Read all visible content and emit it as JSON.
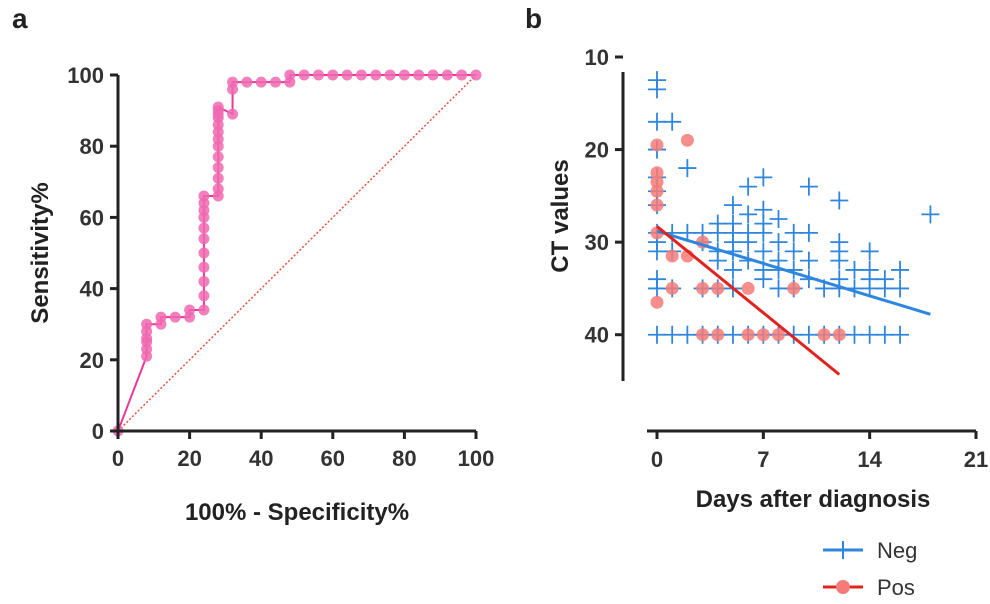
{
  "colors": {
    "roc": "#e8389a",
    "roc_fill": "#f06ab0",
    "diagonal": "#e8503c",
    "neg": "#2e86de",
    "pos": "#e0231c",
    "pos_fill": "#f47b78",
    "axis": "#222222"
  },
  "chart_data": [
    {
      "panel": "a",
      "type": "line",
      "xlabel": "100% - Specificity%",
      "ylabel": "Sensitivity%",
      "xlim": [
        0,
        100
      ],
      "ylim": [
        0,
        100
      ],
      "xticks": [
        0,
        20,
        40,
        60,
        80,
        100
      ],
      "yticks": [
        0,
        20,
        40,
        60,
        80,
        100
      ],
      "grid": false,
      "reference_line": {
        "x": [
          0,
          100
        ],
        "y": [
          0,
          100
        ],
        "style": "dotted"
      },
      "series": [
        {
          "marker": "circle",
          "x": [
            0,
            8,
            8,
            8,
            8,
            8,
            8,
            12,
            12,
            16,
            20,
            20,
            24,
            24,
            24,
            24,
            24,
            24,
            24,
            24,
            24,
            24,
            24,
            28,
            28,
            28,
            28,
            28,
            28,
            28,
            28,
            28,
            28,
            28,
            28,
            28,
            32,
            32,
            32,
            36,
            40,
            44,
            48,
            48,
            52,
            56,
            60,
            64,
            68,
            72,
            76,
            80,
            84,
            88,
            92,
            96,
            100
          ],
          "y": [
            0,
            21,
            23,
            25,
            26,
            28,
            30,
            30,
            32,
            32,
            32,
            34,
            34,
            38,
            42,
            46,
            50,
            54,
            57,
            60,
            62,
            64,
            66,
            66,
            68,
            71,
            74,
            77,
            80,
            82,
            84,
            86,
            88,
            89,
            90,
            91,
            89,
            96,
            98,
            98,
            98,
            98,
            98,
            100,
            100,
            100,
            100,
            100,
            100,
            100,
            100,
            100,
            100,
            100,
            100,
            100,
            100
          ]
        }
      ]
    },
    {
      "panel": "b",
      "type": "scatter",
      "xlabel": "Days after diagnosis",
      "ylabel": "CT values",
      "xlim": [
        0,
        21
      ],
      "ylim": [
        45,
        10
      ],
      "y_reversed": true,
      "xticks": [
        0,
        7,
        14,
        21
      ],
      "yticks": [
        10,
        20,
        30,
        40
      ],
      "grid": false,
      "legend": "bottom-right",
      "series": [
        {
          "name": "Neg",
          "marker": "plus",
          "points": [
            [
              0,
              12.5
            ],
            [
              0,
              13.5
            ],
            [
              0,
              17
            ],
            [
              0,
              20
            ],
            [
              0,
              23
            ],
            [
              0,
              24.5
            ],
            [
              0,
              26
            ],
            [
              0,
              29
            ],
            [
              0,
              30
            ],
            [
              0,
              31
            ],
            [
              0,
              34
            ],
            [
              0,
              35
            ],
            [
              0,
              40
            ],
            [
              1,
              17
            ],
            [
              1,
              29
            ],
            [
              1,
              31
            ],
            [
              1,
              35
            ],
            [
              1,
              40
            ],
            [
              2,
              22
            ],
            [
              2,
              29
            ],
            [
              2,
              40
            ],
            [
              3,
              29
            ],
            [
              3,
              30
            ],
            [
              3,
              35
            ],
            [
              3,
              40
            ],
            [
              4,
              28
            ],
            [
              4,
              29
            ],
            [
              4,
              31
            ],
            [
              4,
              32
            ],
            [
              4,
              35
            ],
            [
              4,
              40
            ],
            [
              5,
              26
            ],
            [
              5,
              28
            ],
            [
              5,
              29
            ],
            [
              5,
              30
            ],
            [
              5,
              31
            ],
            [
              5,
              33
            ],
            [
              5,
              35
            ],
            [
              5,
              40
            ],
            [
              6,
              24
            ],
            [
              6,
              27
            ],
            [
              6,
              29
            ],
            [
              6,
              30
            ],
            [
              6,
              32
            ],
            [
              6,
              40
            ],
            [
              7,
              23
            ],
            [
              7,
              26.5
            ],
            [
              7,
              28
            ],
            [
              7,
              29
            ],
            [
              7,
              31
            ],
            [
              7,
              33
            ],
            [
              7,
              34
            ],
            [
              7,
              40
            ],
            [
              8,
              27.5
            ],
            [
              8,
              30
            ],
            [
              8,
              32
            ],
            [
              8,
              33
            ],
            [
              8,
              35
            ],
            [
              8,
              40
            ],
            [
              9,
              29
            ],
            [
              9,
              31
            ],
            [
              9,
              33
            ],
            [
              9,
              35
            ],
            [
              9,
              40
            ],
            [
              10,
              24
            ],
            [
              10,
              29
            ],
            [
              10,
              32
            ],
            [
              10,
              34
            ],
            [
              10,
              40
            ],
            [
              11,
              35
            ],
            [
              11,
              40
            ],
            [
              12,
              25.5
            ],
            [
              12,
              30
            ],
            [
              12,
              31
            ],
            [
              12,
              32
            ],
            [
              12,
              34
            ],
            [
              12,
              35
            ],
            [
              12,
              40
            ],
            [
              13,
              33
            ],
            [
              13,
              35
            ],
            [
              13,
              40
            ],
            [
              14,
              31
            ],
            [
              14,
              33
            ],
            [
              14,
              34
            ],
            [
              14,
              35
            ],
            [
              14,
              40
            ],
            [
              15,
              34
            ],
            [
              15,
              35
            ],
            [
              15,
              40
            ],
            [
              16,
              33
            ],
            [
              16,
              35
            ],
            [
              16,
              40
            ],
            [
              18,
              27
            ]
          ],
          "trend": {
            "x": [
              0,
              18
            ],
            "y": [
              28.8,
              37.8
            ]
          }
        },
        {
          "name": "Pos",
          "marker": "circle",
          "points": [
            [
              0,
              19.5
            ],
            [
              0,
              22.5
            ],
            [
              0,
              23.5
            ],
            [
              0,
              24.5
            ],
            [
              0,
              26
            ],
            [
              0,
              29
            ],
            [
              0,
              36.5
            ],
            [
              1,
              31.5
            ],
            [
              1,
              35
            ],
            [
              2,
              19
            ],
            [
              2,
              31.5
            ],
            [
              3,
              30
            ],
            [
              3,
              35
            ],
            [
              3,
              40
            ],
            [
              4,
              35
            ],
            [
              4,
              40
            ],
            [
              6,
              35
            ],
            [
              6,
              40
            ],
            [
              7,
              40
            ],
            [
              8,
              40
            ],
            [
              9,
              35
            ],
            [
              11,
              40
            ],
            [
              12,
              40
            ]
          ],
          "trend": {
            "x": [
              0,
              12
            ],
            "y": [
              28.3,
              44.3
            ]
          }
        }
      ]
    }
  ]
}
